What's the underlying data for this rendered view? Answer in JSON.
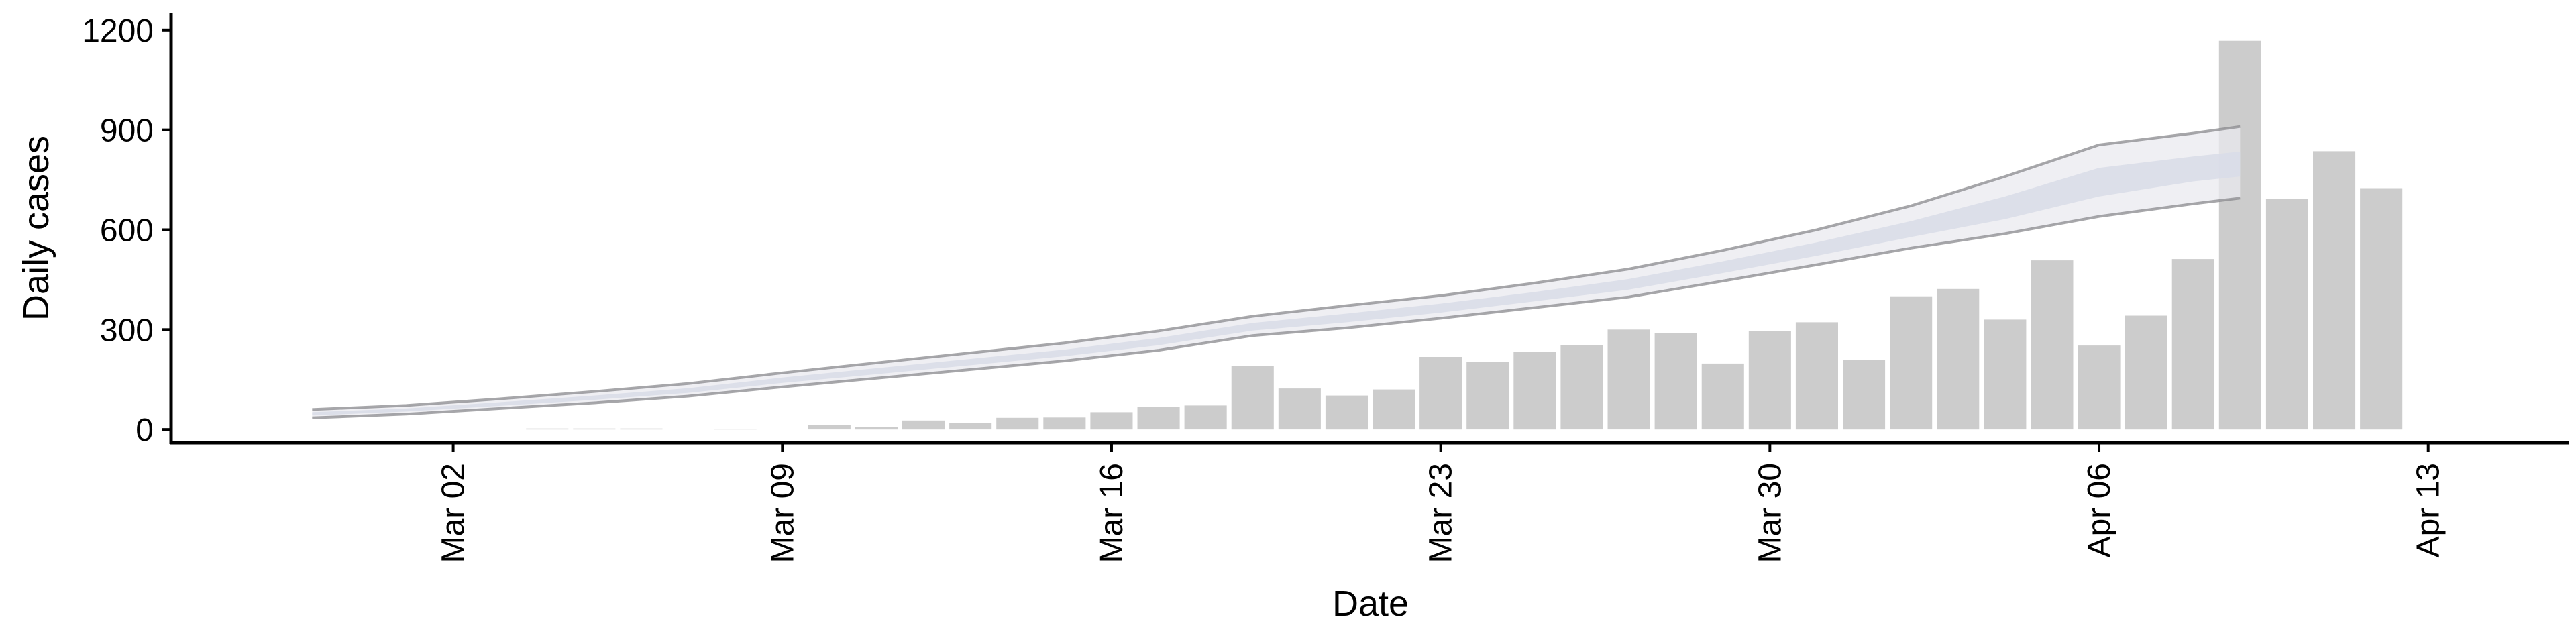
{
  "chart_data": {
    "type": "bar",
    "title": "",
    "xlabel": "Date",
    "ylabel": "Daily cases",
    "ylim": [
      -40,
      1250
    ],
    "yticks": [
      0,
      300,
      600,
      900,
      1200
    ],
    "xlim": [
      "2020-02-25",
      "2020-04-16"
    ],
    "xticks": [
      {
        "date": "2020-03-02",
        "label": "Mar 02"
      },
      {
        "date": "2020-03-09",
        "label": "Mar 09"
      },
      {
        "date": "2020-03-16",
        "label": "Mar 16"
      },
      {
        "date": "2020-03-23",
        "label": "Mar 23"
      },
      {
        "date": "2020-03-30",
        "label": "Mar 30"
      },
      {
        "date": "2020-04-06",
        "label": "Apr 06"
      },
      {
        "date": "2020-04-13",
        "label": "Apr 13"
      }
    ],
    "grid": false,
    "colors": {
      "bars": "#cccccc",
      "band_outer": "#e9eaef",
      "band_inner": "#d9dde8",
      "band_edge": "#8a8a8e",
      "axis": "#000000"
    },
    "bars": [
      {
        "date": "2020-03-04",
        "value": 3
      },
      {
        "date": "2020-03-05",
        "value": 3
      },
      {
        "date": "2020-03-06",
        "value": 3
      },
      {
        "date": "2020-03-08",
        "value": 2
      },
      {
        "date": "2020-03-10",
        "value": 14
      },
      {
        "date": "2020-03-11",
        "value": 8
      },
      {
        "date": "2020-03-12",
        "value": 27
      },
      {
        "date": "2020-03-13",
        "value": 20
      },
      {
        "date": "2020-03-14",
        "value": 35
      },
      {
        "date": "2020-03-15",
        "value": 36
      },
      {
        "date": "2020-03-16",
        "value": 52
      },
      {
        "date": "2020-03-17",
        "value": 67
      },
      {
        "date": "2020-03-18",
        "value": 72
      },
      {
        "date": "2020-03-19",
        "value": 190
      },
      {
        "date": "2020-03-20",
        "value": 123
      },
      {
        "date": "2020-03-21",
        "value": 102
      },
      {
        "date": "2020-03-22",
        "value": 120
      },
      {
        "date": "2020-03-23",
        "value": 218
      },
      {
        "date": "2020-03-24",
        "value": 202
      },
      {
        "date": "2020-03-25",
        "value": 234
      },
      {
        "date": "2020-03-26",
        "value": 254
      },
      {
        "date": "2020-03-27",
        "value": 300
      },
      {
        "date": "2020-03-28",
        "value": 290
      },
      {
        "date": "2020-03-29",
        "value": 198
      },
      {
        "date": "2020-03-30",
        "value": 295
      },
      {
        "date": "2020-03-31",
        "value": 322
      },
      {
        "date": "2020-04-01",
        "value": 210
      },
      {
        "date": "2020-04-02",
        "value": 400
      },
      {
        "date": "2020-04-03",
        "value": 422
      },
      {
        "date": "2020-04-04",
        "value": 330
      },
      {
        "date": "2020-04-05",
        "value": 508
      },
      {
        "date": "2020-04-06",
        "value": 252
      },
      {
        "date": "2020-04-07",
        "value": 342
      },
      {
        "date": "2020-04-08",
        "value": 512
      },
      {
        "date": "2020-04-09",
        "value": 1168
      },
      {
        "date": "2020-04-10",
        "value": 693
      },
      {
        "date": "2020-04-11",
        "value": 836
      },
      {
        "date": "2020-04-12",
        "value": 725
      }
    ],
    "band": [
      {
        "date": "2020-02-28",
        "lo_outer": 35,
        "lo_inner": 42,
        "hi_inner": 52,
        "hi_outer": 60
      },
      {
        "date": "2020-03-01",
        "lo_outer": 46,
        "lo_inner": 54,
        "hi_inner": 63,
        "hi_outer": 72
      },
      {
        "date": "2020-03-03",
        "lo_outer": 63,
        "lo_inner": 71,
        "hi_inner": 82,
        "hi_outer": 92
      },
      {
        "date": "2020-03-05",
        "lo_outer": 80,
        "lo_inner": 89,
        "hi_inner": 102,
        "hi_outer": 114
      },
      {
        "date": "2020-03-07",
        "lo_outer": 100,
        "lo_inner": 110,
        "hi_inner": 124,
        "hi_outer": 138
      },
      {
        "date": "2020-03-09",
        "lo_outer": 128,
        "lo_inner": 140,
        "hi_inner": 156,
        "hi_outer": 170
      },
      {
        "date": "2020-03-11",
        "lo_outer": 154,
        "lo_inner": 166,
        "hi_inner": 184,
        "hi_outer": 200
      },
      {
        "date": "2020-03-13",
        "lo_outer": 180,
        "lo_inner": 193,
        "hi_inner": 212,
        "hi_outer": 230
      },
      {
        "date": "2020-03-15",
        "lo_outer": 206,
        "lo_inner": 220,
        "hi_inner": 240,
        "hi_outer": 260
      },
      {
        "date": "2020-03-17",
        "lo_outer": 238,
        "lo_inner": 253,
        "hi_inner": 275,
        "hi_outer": 296
      },
      {
        "date": "2020-03-19",
        "lo_outer": 282,
        "lo_inner": 297,
        "hi_inner": 320,
        "hi_outer": 340
      },
      {
        "date": "2020-03-21",
        "lo_outer": 305,
        "lo_inner": 322,
        "hi_inner": 348,
        "hi_outer": 372
      },
      {
        "date": "2020-03-23",
        "lo_outer": 334,
        "lo_inner": 351,
        "hi_inner": 378,
        "hi_outer": 402
      },
      {
        "date": "2020-03-25",
        "lo_outer": 366,
        "lo_inner": 385,
        "hi_inner": 413,
        "hi_outer": 440
      },
      {
        "date": "2020-03-27",
        "lo_outer": 398,
        "lo_inner": 420,
        "hi_inner": 452,
        "hi_outer": 482
      },
      {
        "date": "2020-03-29",
        "lo_outer": 446,
        "lo_inner": 470,
        "hi_inner": 505,
        "hi_outer": 538
      },
      {
        "date": "2020-03-31",
        "lo_outer": 495,
        "lo_inner": 522,
        "hi_inner": 562,
        "hi_outer": 600
      },
      {
        "date": "2020-04-02",
        "lo_outer": 545,
        "lo_inner": 578,
        "hi_inner": 626,
        "hi_outer": 672
      },
      {
        "date": "2020-04-04",
        "lo_outer": 588,
        "lo_inner": 632,
        "hi_inner": 700,
        "hi_outer": 760
      },
      {
        "date": "2020-04-06",
        "lo_outer": 640,
        "lo_inner": 700,
        "hi_inner": 786,
        "hi_outer": 855
      },
      {
        "date": "2020-04-08",
        "lo_outer": 678,
        "lo_inner": 745,
        "hi_inner": 820,
        "hi_outer": 890
      },
      {
        "date": "2020-04-09",
        "lo_outer": 695,
        "lo_inner": 760,
        "hi_inner": 835,
        "hi_outer": 910
      }
    ]
  }
}
